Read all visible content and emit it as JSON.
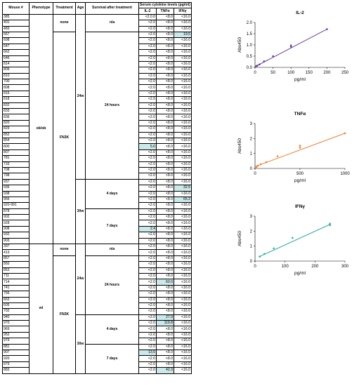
{
  "table": {
    "headers": {
      "mouse": "Mouse #",
      "phenotype": "Phenotype",
      "treatment": "Treatment",
      "age": "Age",
      "survival": "Survival after treatment",
      "serum_group": "Serum cytokine levels (pg/ml)",
      "il2": "IL-2",
      "tnfa": "TNFα",
      "ifng": "IFNγ"
    },
    "rows": [
      {
        "id": "385",
        "il2": "<2.0.0",
        "tnfa": "<8.0",
        "ifng": "<16.0",
        "hl": ""
      },
      {
        "id": "401",
        "il2": "<2.0",
        "tnfa": "<8.0",
        "ifng": "<16.0",
        "hl": ""
      },
      {
        "id": "483",
        "il2": "<2.0",
        "tnfa": "<8.0",
        "ifng": "<16.0",
        "hl": ""
      },
      {
        "id": "667",
        "il2": "<2.0",
        "tnfa": "<8.0",
        "ifng": "19.5",
        "hl": "ifng"
      },
      {
        "id": "698",
        "il2": "<2.0",
        "tnfa": "<8.0",
        "ifng": "<16.0",
        "hl": ""
      },
      {
        "id": "647",
        "il2": "<2.0",
        "tnfa": "<8.0",
        "ifng": "<16.0",
        "hl": ""
      },
      {
        "id": "662",
        "il2": "<2.0",
        "tnfa": "<8.0",
        "ifng": "<16.0",
        "hl": ""
      },
      {
        "id": "646",
        "il2": "<2.0",
        "tnfa": "<8.0",
        "ifng": "<16.0",
        "hl": ""
      },
      {
        "id": "814",
        "il2": "<2.0",
        "tnfa": "<8.0",
        "ifng": "<16.0",
        "hl": ""
      },
      {
        "id": "809",
        "il2": "<2.0",
        "tnfa": "<8.0",
        "ifng": "<16.0",
        "hl": ""
      },
      {
        "id": "810",
        "il2": "<2.0",
        "tnfa": "<8.0",
        "ifng": "<16.0",
        "hl": ""
      },
      {
        "id": "700",
        "il2": "<2.0",
        "tnfa": "<8.0",
        "ifng": "<16.0",
        "hl": ""
      },
      {
        "id": "808",
        "il2": "<2.0",
        "tnfa": "<8.0",
        "ifng": "<16.0",
        "hl": ""
      },
      {
        "id": "816",
        "il2": "<2.0",
        "tnfa": "<8.0",
        "ifng": "<16.0",
        "hl": ""
      },
      {
        "id": "818",
        "il2": "<2.0",
        "tnfa": "<8.0",
        "ifng": "<16.0",
        "hl": ""
      },
      {
        "id": "832",
        "il2": "<2.0",
        "tnfa": "<8.0",
        "ifng": "<16.0",
        "hl": ""
      },
      {
        "id": "833",
        "il2": "<2.0",
        "tnfa": "<8.0",
        "ifng": "<16.0",
        "hl": ""
      },
      {
        "id": "836",
        "il2": "<2.0",
        "tnfa": "<8.0",
        "ifng": "<16.0",
        "hl": ""
      },
      {
        "id": "820",
        "il2": "<2.0",
        "tnfa": "<8.0",
        "ifng": "<16.0",
        "hl": ""
      },
      {
        "id": "829",
        "il2": "<2.0",
        "tnfa": "<8.0",
        "ifng": "<16.0",
        "hl": ""
      },
      {
        "id": "852",
        "il2": "<2.0",
        "tnfa": "<8.0",
        "ifng": "<16.0",
        "hl": ""
      },
      {
        "id": "854",
        "il2": "<2.0",
        "tnfa": "<8.0",
        "ifng": "<16.0",
        "hl": ""
      },
      {
        "id": "800",
        "il2": "5.0",
        "tnfa": "<8.0",
        "ifng": "<16.0",
        "hl": "il2"
      },
      {
        "id": "807",
        "il2": "<2.0",
        "tnfa": "<8.0",
        "ifng": "<16.0",
        "hl": ""
      },
      {
        "id": "781",
        "il2": "<2.0",
        "tnfa": "<8.0",
        "ifng": "<16.0",
        "hl": ""
      },
      {
        "id": "733",
        "il2": "<2.0",
        "tnfa": "<8.0",
        "ifng": "<16.0",
        "hl": ""
      },
      {
        "id": "708",
        "il2": "<2.0",
        "tnfa": "<8.0",
        "ifng": "<16.0",
        "hl": ""
      },
      {
        "id": "798",
        "il2": "<2.0",
        "tnfa": "<8.0",
        "ifng": "<16.0",
        "hl": ""
      },
      {
        "id": "937",
        "il2": "<2.0",
        "tnfa": "<8.0",
        "ifng": "<16.0",
        "hl": ""
      },
      {
        "id": "936",
        "il2": "<2.0",
        "tnfa": "<8.0",
        "ifng": "32.5",
        "hl": "ifng"
      },
      {
        "id": "938",
        "il2": "<2.0",
        "tnfa": "<8.0",
        "ifng": "<16.0",
        "hl": ""
      },
      {
        "id": "956",
        "il2": "<2.0",
        "tnfa": "<8.0",
        "ifng": "65.2",
        "hl": "ifng"
      },
      {
        "id": "920-991",
        "il2": "<2.0",
        "tnfa": "<8.0",
        "ifng": "<16.0",
        "hl": ""
      },
      {
        "id": "878",
        "il2": "<2.0",
        "tnfa": "<8.0",
        "ifng": "<16.0",
        "hl": ""
      },
      {
        "id": "902",
        "il2": "<2.0",
        "tnfa": "<8.0",
        "ifng": "<16.0",
        "hl": ""
      },
      {
        "id": "928",
        "il2": "<2.0",
        "tnfa": "<8.0",
        "ifng": "<16.0",
        "hl": ""
      },
      {
        "id": "908",
        "il2": "2.4",
        "tnfa": "<8.0",
        "ifng": "<16.0",
        "hl": "il2"
      },
      {
        "id": "932",
        "il2": "<2.0",
        "tnfa": "<8.0",
        "ifng": "<16.0",
        "hl": ""
      },
      {
        "id": "903",
        "il2": "<2.0",
        "tnfa": "<8.0",
        "ifng": "<16.0",
        "hl": ""
      },
      {
        "id": "397",
        "il2": "<2.0",
        "tnfa": "<8.0",
        "ifng": "<16.0",
        "hl": ""
      },
      {
        "id": "413",
        "il2": "<2.0",
        "tnfa": "<8.0",
        "ifng": "<16.0",
        "hl": ""
      },
      {
        "id": "857",
        "il2": "<2.0",
        "tnfa": "<8.0",
        "ifng": "<16.0",
        "hl": ""
      },
      {
        "id": "850",
        "il2": "<2.0",
        "tnfa": "<8.0",
        "ifng": "<16.0",
        "hl": ""
      },
      {
        "id": "853",
        "il2": "<2.0",
        "tnfa": "<8.0",
        "ifng": "<16.0",
        "hl": ""
      },
      {
        "id": "711",
        "il2": "<2.0",
        "tnfa": "<8.0",
        "ifng": "<16.0",
        "hl": ""
      },
      {
        "id": "714",
        "il2": "<2.0",
        "tnfa": "60.0",
        "ifng": "<16.0",
        "hl": "tnfa"
      },
      {
        "id": "741",
        "il2": "<2.0",
        "tnfa": "<8.0",
        "ifng": "<16.0",
        "hl": ""
      },
      {
        "id": "756",
        "il2": "<2.0",
        "tnfa": "<8.0",
        "ifng": "<16.0",
        "hl": ""
      },
      {
        "id": "663",
        "il2": "<2.0",
        "tnfa": "<8.0",
        "ifng": "<16.0",
        "hl": ""
      },
      {
        "id": "605",
        "il2": "<2.0",
        "tnfa": "<8.0",
        "ifng": "<16.0",
        "hl": ""
      },
      {
        "id": "702",
        "il2": "<2.0",
        "tnfa": "<8.0",
        "ifng": "<16.0",
        "hl": ""
      },
      {
        "id": "940",
        "il2": "<2.0",
        "tnfa": "27.9",
        "ifng": "<16.0",
        "hl": "tnfa"
      },
      {
        "id": "970",
        "il2": "<2.0",
        "tnfa": "119.8",
        "ifng": "<16.0",
        "hl": "tnfa"
      },
      {
        "id": "969",
        "il2": "<2.0",
        "tnfa": "<8.0",
        "ifng": "<16.0",
        "hl": ""
      },
      {
        "id": "952",
        "il2": "<2.0",
        "tnfa": "<8.0",
        "ifng": "<16.0",
        "hl": ""
      },
      {
        "id": "979",
        "il2": "<2.0",
        "tnfa": "<8.0",
        "ifng": "<16.0",
        "hl": ""
      },
      {
        "id": "881",
        "il2": "<2.0",
        "tnfa": "<8.0",
        "ifng": "<16.0",
        "hl": ""
      },
      {
        "id": "907",
        "il2": "13.5",
        "tnfa": "<8.0",
        "ifng": "<16.0",
        "hl": "il2"
      },
      {
        "id": "920",
        "il2": "<2.0",
        "tnfa": "<8.0",
        "ifng": "<16.0",
        "hl": ""
      },
      {
        "id": "879",
        "il2": "<2.0",
        "tnfa": "<8.0",
        "ifng": "<16.0",
        "hl": ""
      },
      {
        "id": "883",
        "il2": "<2.0",
        "tnfa": "42.3",
        "ifng": "<16.0",
        "hl": "tnfa"
      }
    ],
    "spans": [
      {
        "col": "phenotype",
        "start": 0,
        "len": 39,
        "text": "ob/ob"
      },
      {
        "col": "phenotype",
        "start": 39,
        "len": 22,
        "text": "wt"
      },
      {
        "col": "treatment",
        "start": 0,
        "len": 3,
        "text": "none"
      },
      {
        "col": "treatment",
        "start": 3,
        "len": 36,
        "text": "FN3K"
      },
      {
        "col": "treatment",
        "start": 39,
        "len": 2,
        "text": "none"
      },
      {
        "col": "treatment",
        "start": 41,
        "len": 20,
        "text": "FN3K"
      },
      {
        "col": "age",
        "start": 0,
        "len": 28,
        "text": "24w"
      },
      {
        "col": "age",
        "start": 28,
        "len": 11,
        "text": "30w"
      },
      {
        "col": "age",
        "start": 39,
        "len": 12,
        "text": "24w"
      },
      {
        "col": "age",
        "start": 51,
        "len": 10,
        "text": "30w"
      },
      {
        "col": "survival",
        "start": 0,
        "len": 3,
        "text": "n/a"
      },
      {
        "col": "survival",
        "start": 3,
        "len": 25,
        "text": "24 hours"
      },
      {
        "col": "survival",
        "start": 28,
        "len": 5,
        "text": "4 days"
      },
      {
        "col": "survival",
        "start": 33,
        "len": 6,
        "text": "7 days"
      },
      {
        "col": "survival",
        "start": 39,
        "len": 2,
        "text": "n/a"
      },
      {
        "col": "survival",
        "start": 41,
        "len": 10,
        "text": "24 hours"
      },
      {
        "col": "survival",
        "start": 51,
        "len": 5,
        "text": "4 days"
      },
      {
        "col": "survival",
        "start": 56,
        "len": 5,
        "text": "7 days"
      }
    ]
  },
  "chart_data": [
    {
      "type": "scatter",
      "title": "IL-2",
      "xlabel": "pg/ml",
      "ylabel": "Abs450",
      "xlim": [
        0,
        250
      ],
      "ylim": [
        0,
        2.0
      ],
      "xticks": [
        0,
        50,
        100,
        150,
        200,
        250
      ],
      "yticks": [
        0.0,
        0.5,
        1.0,
        1.5,
        2.0
      ],
      "xtick_labels": [
        "0",
        "50",
        "100",
        "150",
        "200",
        "250"
      ],
      "ytick_labels": [
        "0.0",
        "0.5",
        "1.0",
        "1.5",
        "2.0"
      ],
      "color": "#6a3d9a",
      "x": [
        3.1,
        6.25,
        12.5,
        25,
        50,
        100,
        100,
        200
      ],
      "y": [
        0.05,
        0.08,
        0.13,
        0.27,
        0.5,
        0.92,
        0.98,
        1.7
      ],
      "fit": [
        [
          0,
          0.03
        ],
        [
          200,
          1.7
        ]
      ]
    },
    {
      "type": "scatter",
      "title": "TNFα",
      "xlabel": "pg/ml",
      "ylabel": "Abs450",
      "xlim": [
        0,
        1000
      ],
      "ylim": [
        0,
        3
      ],
      "xticks": [
        0,
        500,
        1000
      ],
      "yticks": [
        0,
        1,
        2,
        3
      ],
      "xtick_labels": [
        "0",
        "500",
        "1000"
      ],
      "ytick_labels": [
        "0",
        "1",
        "2",
        "3"
      ],
      "color": "#f07c2a",
      "x": [
        15.6,
        31.3,
        62.5,
        125,
        250,
        500,
        500,
        1000
      ],
      "y": [
        0.1,
        0.18,
        0.28,
        0.42,
        0.82,
        1.38,
        1.52,
        2.35
      ],
      "fit": [
        [
          0,
          0.12
        ],
        [
          1000,
          2.35
        ]
      ]
    },
    {
      "type": "scatter",
      "title": "IFNγ",
      "xlabel": "pg/ml",
      "ylabel": "Abs450",
      "xlim": [
        0,
        300
      ],
      "ylim": [
        0,
        3
      ],
      "xticks": [
        0,
        100,
        200,
        300
      ],
      "yticks": [
        0,
        1,
        2,
        3
      ],
      "xtick_labels": [
        "0",
        "100",
        "200",
        "300"
      ],
      "ytick_labels": [
        "0",
        "1",
        "2",
        "3"
      ],
      "color": "#2aa9a3",
      "x": [
        15.6,
        31.3,
        62.5,
        125,
        250,
        250
      ],
      "y": [
        0.3,
        0.48,
        0.85,
        1.55,
        2.4,
        2.5
      ],
      "fit": [
        [
          15,
          0.3
        ],
        [
          250,
          2.45
        ]
      ]
    }
  ]
}
